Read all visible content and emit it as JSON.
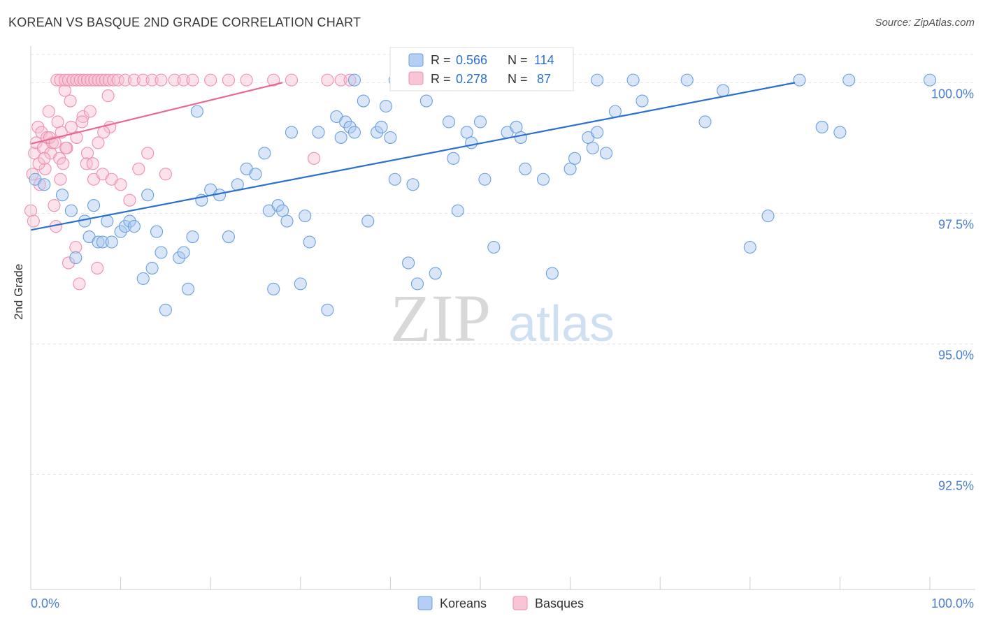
{
  "header": {
    "title": "KOREAN VS BASQUE 2ND GRADE CORRELATION CHART",
    "source": "Source: ZipAtlas.com"
  },
  "watermark": {
    "zip": "ZIP",
    "atlas": "atlas"
  },
  "colors": {
    "koreans": "#6a9fe0",
    "koreans_fill": "#a9c8f0",
    "koreans_line": "#2b6fcf",
    "basques": "#ef8fb0",
    "basques_fill": "#f7bfd2",
    "basques_line": "#e8698f",
    "axis_text": "#4a7fd0",
    "grid": "#e4e4e4"
  },
  "legend": {
    "koreans": {
      "r_label": "R =",
      "r_value": "0.566",
      "n_label": "N =",
      "n_value": "114"
    },
    "basques": {
      "r_label": "R =",
      "r_value": "0.278",
      "n_label": "N =",
      "n_value": "87"
    }
  },
  "chart_data": {
    "type": "scatter",
    "title": "KOREAN VS BASQUE 2ND GRADE CORRELATION CHART",
    "xlabel": "",
    "ylabel": "2nd Grade",
    "xlim": [
      0,
      100
    ],
    "ylim": [
      90.3,
      100.7
    ],
    "x_tick_labels": [
      "0.0%",
      "100.0%"
    ],
    "y_tick_labels": [
      "100.0%",
      "97.5%",
      "95.0%",
      "92.5%"
    ],
    "y_ticks": [
      100.0,
      97.5,
      95.0,
      92.5
    ],
    "grid": true,
    "legend_position": "bottom-center",
    "series": [
      {
        "name": "Koreans",
        "r": 0.566,
        "n": 114,
        "trend": {
          "x": [
            0,
            85
          ],
          "y": [
            97.18,
            100.0
          ]
        },
        "points": [
          [
            0.5,
            98.15
          ],
          [
            1.5,
            98.05
          ],
          [
            3.5,
            97.85
          ],
          [
            4.5,
            97.55
          ],
          [
            5.0,
            96.65
          ],
          [
            6.5,
            97.05
          ],
          [
            6.0,
            97.35
          ],
          [
            7.0,
            97.65
          ],
          [
            7.5,
            96.95
          ],
          [
            8.0,
            96.95
          ],
          [
            8.5,
            97.35
          ],
          [
            9.0,
            96.95
          ],
          [
            10.0,
            97.15
          ],
          [
            10.5,
            97.25
          ],
          [
            11.0,
            97.35
          ],
          [
            11.5,
            97.25
          ],
          [
            12.5,
            96.25
          ],
          [
            13.0,
            97.85
          ],
          [
            13.5,
            96.45
          ],
          [
            14.0,
            97.15
          ],
          [
            14.5,
            96.75
          ],
          [
            15.0,
            95.65
          ],
          [
            16.5,
            96.65
          ],
          [
            17.0,
            96.75
          ],
          [
            17.5,
            96.05
          ],
          [
            18.0,
            97.05
          ],
          [
            18.5,
            99.45
          ],
          [
            19.0,
            97.75
          ],
          [
            20.0,
            97.95
          ],
          [
            21.0,
            97.85
          ],
          [
            22.0,
            97.05
          ],
          [
            23.0,
            98.05
          ],
          [
            24.0,
            98.35
          ],
          [
            25.0,
            98.25
          ],
          [
            26.0,
            98.65
          ],
          [
            26.5,
            97.55
          ],
          [
            27.0,
            96.05
          ],
          [
            27.5,
            97.65
          ],
          [
            28.0,
            97.55
          ],
          [
            28.5,
            97.35
          ],
          [
            29.0,
            99.05
          ],
          [
            30.0,
            96.15
          ],
          [
            30.5,
            97.45
          ],
          [
            31.0,
            96.95
          ],
          [
            32.0,
            99.05
          ],
          [
            33.0,
            95.65
          ],
          [
            34.0,
            99.35
          ],
          [
            34.5,
            98.95
          ],
          [
            35.0,
            99.25
          ],
          [
            35.5,
            99.15
          ],
          [
            36.0,
            99.05
          ],
          [
            37.0,
            99.65
          ],
          [
            37.5,
            97.35
          ],
          [
            38.5,
            99.05
          ],
          [
            39.0,
            99.15
          ],
          [
            39.5,
            99.55
          ],
          [
            40.0,
            98.95
          ],
          [
            40.5,
            98.15
          ],
          [
            42.0,
            96.55
          ],
          [
            42.5,
            98.05
          ],
          [
            43.0,
            96.15
          ],
          [
            44.0,
            99.65
          ],
          [
            45.0,
            96.35
          ],
          [
            46.5,
            99.25
          ],
          [
            47.0,
            98.55
          ],
          [
            47.5,
            97.55
          ],
          [
            48.5,
            99.05
          ],
          [
            49.0,
            98.85
          ],
          [
            50.0,
            99.25
          ],
          [
            50.5,
            98.15
          ],
          [
            51.5,
            96.85
          ],
          [
            53.0,
            99.05
          ],
          [
            54.0,
            99.15
          ],
          [
            54.5,
            98.95
          ],
          [
            55.0,
            98.35
          ],
          [
            57.0,
            98.15
          ],
          [
            58.0,
            96.35
          ],
          [
            60.0,
            98.35
          ],
          [
            60.5,
            98.55
          ],
          [
            62.0,
            98.95
          ],
          [
            62.5,
            98.75
          ],
          [
            63.0,
            99.05
          ],
          [
            64.0,
            98.65
          ],
          [
            65.0,
            99.45
          ],
          [
            68.0,
            99.65
          ],
          [
            75.0,
            99.25
          ],
          [
            77.0,
            99.85
          ],
          [
            80.0,
            96.85
          ],
          [
            82.0,
            97.45
          ],
          [
            88.0,
            99.15
          ],
          [
            90.0,
            99.05
          ],
          [
            36.0,
            100.05
          ],
          [
            40.5,
            100.05
          ],
          [
            45.0,
            100.05
          ],
          [
            48.0,
            100.05
          ],
          [
            50.0,
            100.05
          ],
          [
            52.0,
            100.05
          ],
          [
            53.5,
            100.05
          ],
          [
            59.0,
            100.05
          ],
          [
            63.0,
            100.05
          ],
          [
            67.0,
            100.05
          ],
          [
            73.0,
            100.05
          ],
          [
            85.5,
            100.05
          ],
          [
            91.0,
            100.05
          ],
          [
            100.0,
            100.05
          ]
        ]
      },
      {
        "name": "Basques",
        "r": 0.278,
        "n": 87,
        "trend": {
          "x": [
            0,
            28
          ],
          "y": [
            98.83,
            100.0
          ]
        },
        "points": [
          [
            0.2,
            98.25
          ],
          [
            0.4,
            98.65
          ],
          [
            0.6,
            98.85
          ],
          [
            0.8,
            99.15
          ],
          [
            1.0,
            98.05
          ],
          [
            1.2,
            99.05
          ],
          [
            1.4,
            98.75
          ],
          [
            1.6,
            98.35
          ],
          [
            1.8,
            98.95
          ],
          [
            2.0,
            99.45
          ],
          [
            2.2,
            98.65
          ],
          [
            2.4,
            98.85
          ],
          [
            2.6,
            97.65
          ],
          [
            2.8,
            97.25
          ],
          [
            3.0,
            99.25
          ],
          [
            3.2,
            98.55
          ],
          [
            3.4,
            99.05
          ],
          [
            3.6,
            98.45
          ],
          [
            3.8,
            99.85
          ],
          [
            4.0,
            98.75
          ],
          [
            4.2,
            96.55
          ],
          [
            4.4,
            99.65
          ],
          [
            5.0,
            96.85
          ],
          [
            5.4,
            96.15
          ],
          [
            5.8,
            99.35
          ],
          [
            6.2,
            98.45
          ],
          [
            6.6,
            99.45
          ],
          [
            7.0,
            98.15
          ],
          [
            7.4,
            96.45
          ],
          [
            8.0,
            98.25
          ],
          [
            8.6,
            99.75
          ],
          [
            8.8,
            99.15
          ],
          [
            9.0,
            98.15
          ],
          [
            10.0,
            98.05
          ],
          [
            11.0,
            97.75
          ],
          [
            12.0,
            98.35
          ],
          [
            13.0,
            98.65
          ],
          [
            15.0,
            98.25
          ],
          [
            31.5,
            98.55
          ],
          [
            0.0,
            97.55
          ],
          [
            0.3,
            97.35
          ],
          [
            0.9,
            98.45
          ],
          [
            1.5,
            98.55
          ],
          [
            2.1,
            98.95
          ],
          [
            2.7,
            98.85
          ],
          [
            3.3,
            98.15
          ],
          [
            3.9,
            98.75
          ],
          [
            4.5,
            99.15
          ],
          [
            5.1,
            98.95
          ],
          [
            5.7,
            99.25
          ],
          [
            6.3,
            98.65
          ],
          [
            6.9,
            98.45
          ],
          [
            7.5,
            98.85
          ],
          [
            8.1,
            99.05
          ],
          [
            2.9,
            100.05
          ],
          [
            3.3,
            100.05
          ],
          [
            3.8,
            100.05
          ],
          [
            4.2,
            100.05
          ],
          [
            4.7,
            100.05
          ],
          [
            5.1,
            100.05
          ],
          [
            5.5,
            100.05
          ],
          [
            5.9,
            100.05
          ],
          [
            6.3,
            100.05
          ],
          [
            6.7,
            100.05
          ],
          [
            7.1,
            100.05
          ],
          [
            7.5,
            100.05
          ],
          [
            7.9,
            100.05
          ],
          [
            8.3,
            100.05
          ],
          [
            8.7,
            100.05
          ],
          [
            9.2,
            100.05
          ],
          [
            9.7,
            100.05
          ],
          [
            10.5,
            100.05
          ],
          [
            11.5,
            100.05
          ],
          [
            12.5,
            100.05
          ],
          [
            13.5,
            100.05
          ],
          [
            14.5,
            100.05
          ],
          [
            16.0,
            100.05
          ],
          [
            17.0,
            100.05
          ],
          [
            18.0,
            100.05
          ],
          [
            20.0,
            100.05
          ],
          [
            22.0,
            100.05
          ],
          [
            24.0,
            100.05
          ],
          [
            27.0,
            100.05
          ],
          [
            29.0,
            100.05
          ],
          [
            33.0,
            100.05
          ],
          [
            34.5,
            100.05
          ],
          [
            35.5,
            100.05
          ]
        ]
      }
    ]
  }
}
